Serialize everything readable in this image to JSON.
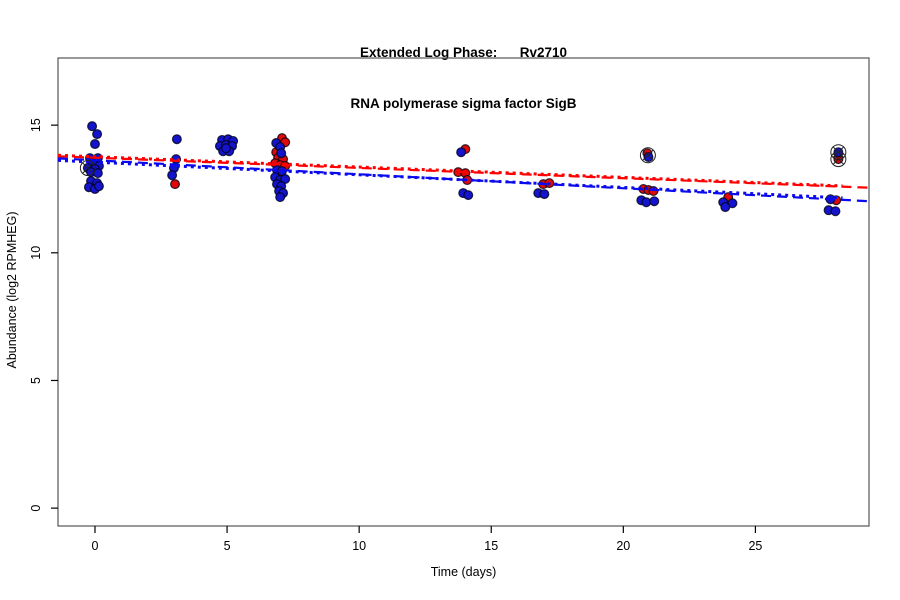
{
  "title": {
    "line1": "Extended Log Phase:      Rv2710",
    "line2": "RNA polymerase sigma factor SigB"
  },
  "chart_data": {
    "type": "scatter",
    "title_line1": "Extended Log Phase:      Rv2710",
    "title_line2": "RNA polymerase sigma factor SigB",
    "xlabel": "Time  (days)",
    "ylabel": "Abundance  (log2 RPMHEG)",
    "xlim": [
      -1.4,
      29.3
    ],
    "ylim": [
      -0.7,
      17.63
    ],
    "xticks": [
      0,
      5,
      10,
      15,
      20,
      25
    ],
    "yticks": [
      0,
      5,
      10,
      15
    ],
    "grid": false,
    "legend": "none",
    "colors": {
      "red_point": "#DE0A0A",
      "blue_point": "#1414CD",
      "red_line": "#FF0000",
      "blue_line": "#0A0AEE",
      "point_stroke": "rgba(0,0,20,0.8)",
      "marker_stroke": "#222222",
      "box_stroke": "#555555"
    },
    "series": [
      {
        "name": "red",
        "color_key": "red_point",
        "points": [
          [
            3.03,
            12.69
          ],
          [
            7.08,
            14.49
          ],
          [
            7.2,
            14.33
          ],
          [
            6.86,
            13.94
          ],
          [
            6.93,
            13.71
          ],
          [
            7.12,
            13.67
          ],
          [
            6.82,
            13.51
          ],
          [
            7.01,
            13.43
          ],
          [
            7.2,
            13.4
          ],
          [
            6.97,
            13.04
          ],
          [
            14.02,
            14.06
          ],
          [
            13.75,
            13.16
          ],
          [
            14.02,
            13.12
          ],
          [
            14.09,
            12.85
          ],
          [
            16.97,
            12.69
          ],
          [
            17.2,
            12.73
          ],
          [
            20.91,
            13.9
          ],
          [
            20.76,
            12.5
          ],
          [
            20.95,
            12.46
          ],
          [
            21.14,
            12.42
          ],
          [
            23.97,
            12.18
          ],
          [
            28.06,
            12.06
          ],
          [
            28.14,
            13.67
          ]
        ]
      },
      {
        "name": "blue",
        "color_key": "blue_point",
        "points": [
          [
            -0.11,
            14.96
          ],
          [
            0.08,
            14.65
          ],
          [
            0.0,
            14.26
          ],
          [
            -0.19,
            13.71
          ],
          [
            0.11,
            13.71
          ],
          [
            -0.08,
            13.51
          ],
          [
            0.15,
            13.4
          ],
          [
            -0.27,
            13.32
          ],
          [
            0.0,
            13.28
          ],
          [
            -0.15,
            13.16
          ],
          [
            0.11,
            13.12
          ],
          [
            -0.15,
            12.81
          ],
          [
            0.08,
            12.73
          ],
          [
            -0.23,
            12.57
          ],
          [
            0.0,
            12.5
          ],
          [
            0.15,
            12.61
          ],
          [
            3.1,
            14.45
          ],
          [
            3.07,
            13.67
          ],
          [
            2.99,
            13.32
          ],
          [
            2.92,
            13.04
          ],
          [
            4.81,
            14.42
          ],
          [
            5.04,
            14.45
          ],
          [
            5.23,
            14.38
          ],
          [
            4.73,
            14.18
          ],
          [
            4.96,
            14.22
          ],
          [
            5.19,
            14.18
          ],
          [
            4.85,
            13.98
          ],
          [
            5.08,
            13.98
          ],
          [
            4.96,
            14.1
          ],
          [
            6.86,
            14.3
          ],
          [
            7.01,
            14.14
          ],
          [
            7.05,
            13.9
          ],
          [
            6.89,
            13.24
          ],
          [
            7.08,
            13.2
          ],
          [
            6.82,
            12.96
          ],
          [
            7.01,
            12.85
          ],
          [
            7.2,
            12.89
          ],
          [
            6.89,
            12.69
          ],
          [
            7.05,
            12.61
          ],
          [
            6.97,
            12.42
          ],
          [
            7.12,
            12.34
          ],
          [
            7.01,
            12.18
          ],
          [
            13.86,
            13.94
          ],
          [
            13.94,
            12.34
          ],
          [
            14.13,
            12.26
          ],
          [
            16.78,
            12.34
          ],
          [
            17.01,
            12.3
          ],
          [
            20.95,
            13.75
          ],
          [
            20.68,
            12.06
          ],
          [
            20.87,
            11.98
          ],
          [
            21.17,
            12.02
          ],
          [
            23.78,
            11.98
          ],
          [
            24.13,
            11.94
          ],
          [
            23.86,
            11.79
          ],
          [
            28.14,
            13.94
          ],
          [
            27.84,
            12.1
          ],
          [
            27.77,
            11.67
          ],
          [
            28.03,
            11.63
          ]
        ]
      }
    ],
    "circled_markers": [
      [
        -0.27,
        13.32
      ],
      [
        20.93,
        13.82
      ],
      [
        28.14,
        13.94
      ],
      [
        28.14,
        13.67
      ]
    ],
    "trend_lines": [
      {
        "name": "red-dashed",
        "color_key": "red_line",
        "style": "dashed",
        "x": [
          -1.4,
          29.3
        ],
        "y": [
          13.78,
          12.55
        ]
      },
      {
        "name": "red-dotted",
        "color_key": "red_line",
        "style": "dotted",
        "x": [
          -1.4,
          28.3
        ],
        "y": [
          13.82,
          12.62
        ]
      },
      {
        "name": "blue-dashed",
        "color_key": "blue_line",
        "style": "dashed",
        "x": [
          -1.4,
          29.3
        ],
        "y": [
          13.7,
          12.02
        ]
      },
      {
        "name": "blue-dotted",
        "color_key": "blue_line",
        "style": "dotted",
        "x": [
          -1.4,
          28.3
        ],
        "y": [
          13.62,
          12.15
        ]
      }
    ]
  }
}
